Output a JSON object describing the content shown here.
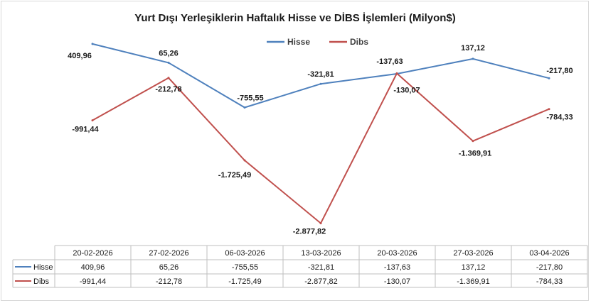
{
  "chart_data": {
    "type": "line",
    "title": "Yurt Dışı Yerleşiklerin Haftalık Hisse ve DİBS İşlemleri (Milyon$)",
    "categories": [
      "20-02-2026",
      "27-02-2026",
      "06-03-2026",
      "13-03-2026",
      "20-03-2026",
      "27-03-2026",
      "03-04-2026"
    ],
    "series": [
      {
        "name": "Hisse",
        "color": "#4f81bd",
        "values": [
          409.96,
          65.26,
          -755.55,
          -321.81,
          -137.63,
          137.12,
          -217.8
        ],
        "labels": [
          "409,96",
          "65,26",
          "-755,55",
          "-321,81",
          "-137,63",
          "137,12",
          "-217,80"
        ]
      },
      {
        "name": "Dibs",
        "color": "#c0504d",
        "values": [
          -991.44,
          -212.78,
          -1725.49,
          -2877.82,
          -130.07,
          -1369.91,
          -784.33
        ],
        "labels": [
          "-991,44",
          "-212,78",
          "-1.725,49",
          "-2.877,82",
          "-130,07",
          "-1.369,91",
          "-784,33"
        ]
      }
    ],
    "legend_position": "top-center",
    "grid": false,
    "data_table": true
  }
}
